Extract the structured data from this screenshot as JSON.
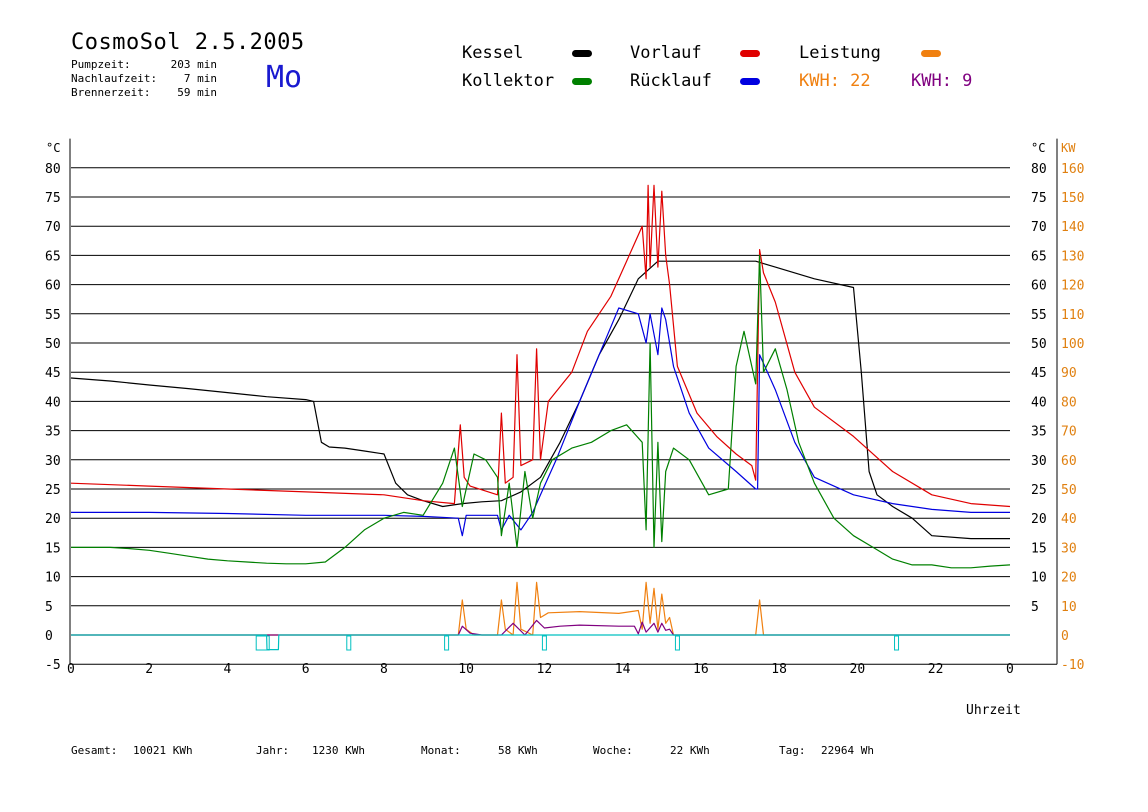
{
  "header": {
    "title": "CosmoSol 2.5.2005",
    "day": "Mo",
    "info": [
      {
        "label": "Pumpzeit:",
        "value": "203 min"
      },
      {
        "label": "Nachlaufzeit:",
        "value": "7 min"
      },
      {
        "label": "Brennerzeit:",
        "value": "59 min"
      }
    ]
  },
  "legend": {
    "kessel": {
      "label": "Kessel",
      "color": "#000000"
    },
    "vorlauf": {
      "label": "Vorlauf",
      "color": "#e00000"
    },
    "leistung": {
      "label": "Leistung",
      "color": "#f08010"
    },
    "kollektor": {
      "label": "Kollektor",
      "color": "#008000"
    },
    "ruecklauf": {
      "label": "Rücklauf",
      "color": "#0000e0"
    },
    "kwh1": "KWH: 22",
    "kwh2": "KWH: 9"
  },
  "footer": {
    "gesamt_label": "Gesamt:",
    "gesamt_value": "10021 KWh",
    "jahr_label": "Jahr:",
    "jahr_value": "1230 KWh",
    "monat_label": "Monat:",
    "monat_value": "58 KWh",
    "woche_label": "Woche:",
    "woche_value": "22 KWh",
    "tag_label": "Tag:",
    "tag_value": "22964 Wh"
  },
  "chart_data": {
    "type": "line",
    "xlabel": "Uhrzeit",
    "ylabel_left": "°C",
    "ylabel_right_temp": "°C",
    "ylabel_right_power": "KW",
    "xlim": [
      0,
      24
    ],
    "ylim": [
      -5,
      85
    ],
    "x_ticks": [
      "0",
      "2",
      "4",
      "6",
      "8",
      "10",
      "12",
      "14",
      "16",
      "18",
      "20",
      "22",
      "0"
    ],
    "y_ticks_left": [
      "-5",
      "0",
      "5",
      "10",
      "15",
      "20",
      "25",
      "30",
      "35",
      "40",
      "45",
      "50",
      "55",
      "60",
      "65",
      "70",
      "75",
      "80"
    ],
    "y_ticks_right_temp": [
      "5",
      "10",
      "15",
      "20",
      "25",
      "30",
      "35",
      "40",
      "45",
      "50",
      "55",
      "60",
      "65",
      "70",
      "75",
      "80"
    ],
    "y_ticks_right_power": [
      "-10",
      "0",
      "10",
      "20",
      "30",
      "40",
      "50",
      "60",
      "70",
      "80",
      "90",
      "100",
      "110",
      "120",
      "130",
      "140",
      "150",
      "160"
    ],
    "grid": true,
    "series": [
      {
        "name": "Kessel",
        "color": "#000000",
        "x": [
          0,
          1,
          2,
          3,
          4,
          5,
          6,
          6.2,
          6.4,
          6.6,
          7,
          7.5,
          8,
          8.3,
          8.6,
          9,
          9.5,
          10,
          10.5,
          11,
          11.5,
          12,
          12.5,
          13,
          13.5,
          14,
          14.5,
          15,
          15.5,
          16,
          17,
          17.5,
          18,
          19,
          20,
          20.2,
          20.4,
          20.6,
          21,
          21.5,
          22,
          23,
          24
        ],
        "y": [
          44,
          43.5,
          42.8,
          42.2,
          41.5,
          40.8,
          40.3,
          40,
          33,
          32.2,
          32,
          31.5,
          31,
          26,
          24,
          23,
          22,
          22.5,
          22.8,
          23,
          24.5,
          27,
          33,
          40,
          48,
          54,
          61,
          64,
          64,
          64,
          64,
          64,
          63,
          61,
          59.5,
          45,
          28,
          24,
          22,
          20,
          17,
          16.5,
          16.5
        ]
      },
      {
        "name": "Vorlauf",
        "color": "#e00000",
        "x": [
          0,
          2,
          4,
          6,
          8,
          9,
          9.8,
          9.95,
          10.05,
          10.2,
          10.9,
          11.0,
          11.1,
          11.3,
          11.4,
          11.5,
          11.8,
          11.9,
          12,
          12.2,
          12.8,
          13.2,
          13.8,
          14.2,
          14.6,
          14.7,
          14.75,
          14.8,
          14.9,
          15.0,
          15.1,
          15.2,
          15.3,
          15.5,
          16,
          16.5,
          17,
          17.4,
          17.5,
          17.6,
          17.7,
          18,
          18.5,
          19,
          20,
          21,
          22,
          23,
          24
        ],
        "y": [
          26,
          25.5,
          25,
          24.5,
          24,
          23,
          22.5,
          36,
          27,
          25.5,
          24,
          38,
          26,
          27,
          48,
          29,
          30,
          49,
          30,
          40,
          45,
          52,
          58,
          64,
          70,
          61,
          77,
          63,
          77,
          63,
          76,
          65,
          60,
          46,
          38,
          34,
          31,
          29,
          26.5,
          66,
          62,
          57,
          45,
          39,
          34,
          28,
          24,
          22.5,
          22
        ]
      },
      {
        "name": "Rücklauf",
        "color": "#0000e0",
        "x": [
          0,
          2,
          4,
          6,
          8,
          9,
          9.9,
          10.0,
          10.1,
          10.5,
          10.9,
          11.0,
          11.2,
          11.5,
          11.8,
          12,
          12.4,
          13,
          13.5,
          14,
          14.5,
          14.7,
          14.8,
          15,
          15.1,
          15.2,
          15.4,
          15.8,
          16.3,
          17,
          17.5,
          17.55,
          17.6,
          18,
          18.5,
          19,
          20,
          21,
          22,
          23,
          24
        ],
        "y": [
          21,
          21,
          20.8,
          20.5,
          20.5,
          20.3,
          20,
          17,
          20.5,
          20.5,
          20.5,
          18,
          20.5,
          18,
          21,
          24,
          30,
          40,
          48,
          56,
          55,
          50,
          55,
          48,
          56,
          54,
          46,
          38,
          32,
          28,
          25,
          25,
          48,
          42,
          33,
          27,
          24,
          22.5,
          21.5,
          21,
          21
        ]
      },
      {
        "name": "Kollektor",
        "color": "#008000",
        "x": [
          0,
          0.5,
          1,
          1.5,
          2,
          2.5,
          3,
          3.5,
          4,
          4.5,
          5,
          5.5,
          6,
          6.5,
          7,
          7.5,
          8,
          8.5,
          9,
          9.5,
          9.8,
          10,
          10.3,
          10.6,
          10.9,
          11,
          11.2,
          11.4,
          11.6,
          11.8,
          12,
          12.3,
          12.8,
          13.3,
          13.8,
          14.2,
          14.6,
          14.7,
          14.8,
          14.9,
          15,
          15.1,
          15.2,
          15.4,
          15.8,
          16.3,
          16.8,
          17.0,
          17.2,
          17.5,
          17.6,
          17.7,
          18,
          18.3,
          18.6,
          19,
          19.5,
          20,
          20.5,
          21,
          21.5,
          22,
          22.5,
          23,
          23.5,
          24
        ],
        "y": [
          15,
          15,
          15,
          14.8,
          14.5,
          14,
          13.5,
          13,
          12.7,
          12.5,
          12.3,
          12.2,
          12.2,
          12.5,
          15,
          18,
          20,
          21,
          20.5,
          26,
          32,
          22,
          31,
          30,
          27,
          17,
          26,
          15,
          28,
          20,
          26,
          30,
          32,
          33,
          35,
          36,
          33,
          18,
          50,
          15,
          33,
          16,
          28,
          32,
          30,
          24,
          25,
          46,
          52,
          43,
          65,
          45,
          49,
          42,
          33,
          26,
          20,
          17,
          15,
          13,
          12,
          12,
          11.5,
          11.5,
          11.8,
          12
        ]
      },
      {
        "name": "Leistung",
        "color": "#f08010",
        "x": [
          0,
          9.8,
          9.9,
          10.0,
          10.1,
          10.3,
          10.8,
          10.9,
          11.0,
          11.1,
          11.3,
          11.4,
          11.5,
          11.8,
          11.9,
          12.0,
          12.2,
          13,
          14,
          14.5,
          14.6,
          14.7,
          14.8,
          14.9,
          15,
          15.1,
          15.2,
          15.3,
          15.4,
          17.4,
          17.5,
          17.6,
          17.7,
          24
        ],
        "y": [
          0,
          0,
          0,
          6,
          1,
          0,
          0,
          0,
          6,
          1,
          0,
          9,
          1,
          0,
          9,
          3,
          3.8,
          4,
          3.7,
          4.2,
          1,
          9,
          2,
          8,
          1,
          7,
          2,
          3,
          0,
          0,
          0,
          6,
          0,
          0
        ]
      },
      {
        "name": "Leistung KWH 9",
        "color": "#800080",
        "x": [
          0,
          9.9,
          10.0,
          10.2,
          10.5,
          11,
          11.3,
          11.6,
          11.9,
          12.1,
          12.5,
          13,
          14,
          14.4,
          14.5,
          14.6,
          14.7,
          14.9,
          15.0,
          15.1,
          15.2,
          15.3,
          15.4,
          24
        ],
        "y": [
          0,
          0,
          1.5,
          0.3,
          0,
          0,
          2,
          0,
          2.5,
          1.2,
          1.5,
          1.7,
          1.5,
          1.5,
          0.2,
          2.2,
          0.5,
          2,
          0.5,
          2,
          0.8,
          1,
          0,
          0
        ]
      },
      {
        "name": "Pumpe",
        "color": "#00c0c0",
        "x": [
          0,
          5,
          5.01,
          5.3,
          5.31,
          24
        ],
        "y": [
          0,
          0,
          -2.5,
          -2.5,
          0,
          0
        ]
      }
    ],
    "pump_markers_x": [
      4.9,
      7.1,
      9.6,
      12.1,
      15.5,
      21.1
    ]
  }
}
